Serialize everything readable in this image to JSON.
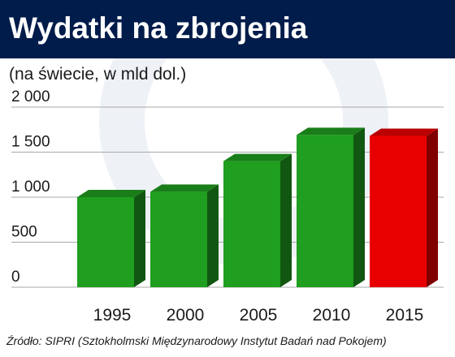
{
  "title": "Wydatki na zbrojenia",
  "subtitle": "(na świecie, w mld dol.)",
  "source": "Źródło: SIPRI (Sztokholmski Międzynarodowy Instytut Badań nad Pokojem)",
  "colors": {
    "header_bg": "#001c4a",
    "bar_green": "#1f9e1f",
    "bar_red": "#e80000",
    "grid": "#a9a9a9",
    "watermark": "#eef1f6"
  },
  "chart_data": {
    "type": "bar",
    "categories": [
      "1995",
      "2000",
      "2005",
      "2010",
      "2015"
    ],
    "values": [
      1000,
      1060,
      1400,
      1690,
      1680
    ],
    "bar_colors": [
      "#1f9e1f",
      "#1f9e1f",
      "#1f9e1f",
      "#1f9e1f",
      "#e80000"
    ],
    "title": "Wydatki na zbrojenia",
    "xlabel": "",
    "ylabel": "",
    "ylim": [
      0,
      2000
    ],
    "yticks": [
      0,
      500,
      1000,
      1500,
      2000
    ],
    "ytick_labels": [
      "0",
      "500",
      "1 000",
      "1 500",
      "2 000"
    ],
    "grid": true,
    "legend": "none",
    "style": "3d-bars"
  }
}
